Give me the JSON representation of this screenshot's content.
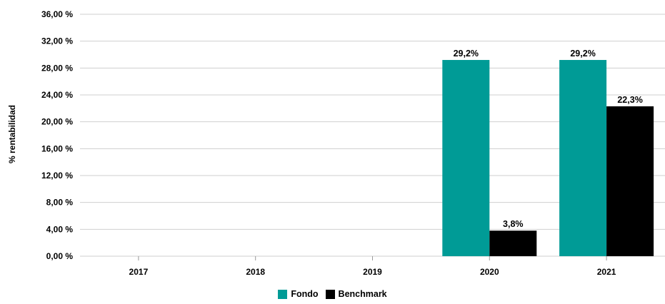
{
  "colors": {
    "fondo": "#009b96",
    "benchmark": "#000000",
    "grid": "#cfcfcf"
  },
  "chart_data": {
    "type": "bar",
    "categories": [
      "2017",
      "2018",
      "2019",
      "2020",
      "2021"
    ],
    "series": [
      {
        "name": "Fondo",
        "values": [
          null,
          null,
          null,
          29.2,
          29.2
        ],
        "labels": [
          "",
          "",
          "",
          "29,2%",
          "29,2%"
        ]
      },
      {
        "name": "Benchmark",
        "values": [
          null,
          null,
          null,
          3.8,
          22.3
        ],
        "labels": [
          "",
          "",
          "",
          "3,8%",
          "22,3%"
        ]
      }
    ],
    "ylabel": "% rentabilidad",
    "ylim": [
      0,
      36
    ],
    "yticks": [
      "0,00 %",
      "4,00 %",
      "8,00 %",
      "12,00 %",
      "16,00 %",
      "20,00 %",
      "24,00 %",
      "28,00 %",
      "32,00 %",
      "36,00 %"
    ],
    "grid": true,
    "legend_position": "bottom"
  }
}
